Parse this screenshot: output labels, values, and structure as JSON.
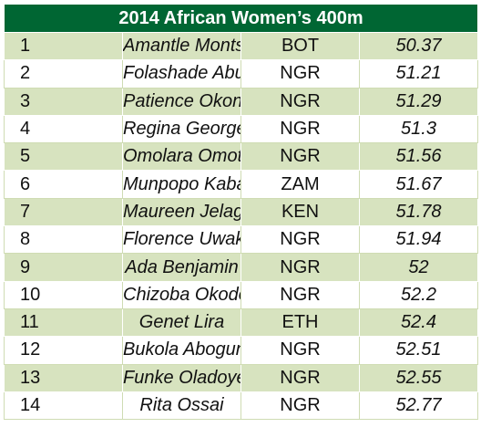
{
  "title": "2014 African Women’s 400m",
  "colors": {
    "header_bg": "#006633",
    "header_text": "#ffffff",
    "row_shade": "#d7e3bf",
    "row_plain": "#ffffff"
  },
  "rows": [
    {
      "rank": "1",
      "name": "Amantle Montsho",
      "nation": "BOT",
      "time": "50.37"
    },
    {
      "rank": "2",
      "name": "Folashade Abugan",
      "nation": "NGR",
      "time": "51.21"
    },
    {
      "rank": "3",
      "name": "Patience Okon George",
      "nation": "NGR",
      "time": "51.29"
    },
    {
      "rank": "4",
      "name": "Regina George",
      "nation": "NGR",
      "time": "51.3"
    },
    {
      "rank": "5",
      "name": "Omolara Omotosho",
      "nation": "NGR",
      "time": "51.56"
    },
    {
      "rank": "6",
      "name": "Munpopo Kabange",
      "nation": "ZAM",
      "time": "51.67"
    },
    {
      "rank": "7",
      "name": "Maureen Jelagat Maiyo",
      "nation": "KEN",
      "time": "51.78"
    },
    {
      "rank": "8",
      "name": "Florence Uwakwe",
      "nation": "NGR",
      "time": "51.94"
    },
    {
      "rank": "9",
      "name": "Ada Benjamin",
      "nation": "NGR",
      "time": "52"
    },
    {
      "rank": "10",
      "name": "Chizoba Okodogbe",
      "nation": "NGR",
      "time": "52.2"
    },
    {
      "rank": "11",
      "name": "Genet Lira",
      "nation": "ETH",
      "time": "52.4"
    },
    {
      "rank": "12",
      "name": "Bukola Abogunloko",
      "nation": "NGR",
      "time": "52.51"
    },
    {
      "rank": "13",
      "name": "Funke Oladoye",
      "nation": "NGR",
      "time": "52.55"
    },
    {
      "rank": "14",
      "name": "Rita Ossai",
      "nation": "NGR",
      "time": "52.77"
    }
  ]
}
